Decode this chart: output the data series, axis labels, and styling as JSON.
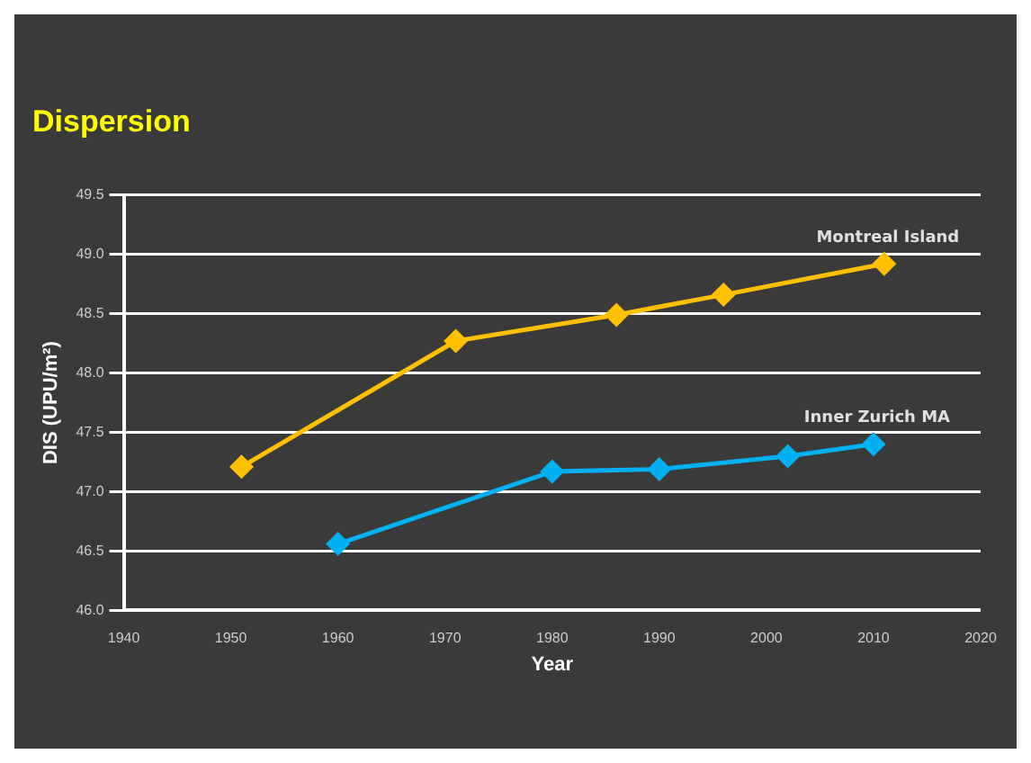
{
  "chart_data": {
    "type": "line",
    "title": "Dispersion",
    "xlabel": "Year",
    "ylabel": "DIS (UPU/m²)",
    "xlim": [
      1940,
      2020
    ],
    "xticks": [
      1940,
      1950,
      1960,
      1970,
      1980,
      1990,
      2000,
      2010,
      2020
    ],
    "ylim": [
      46.0,
      49.5
    ],
    "yticks": [
      {
        "value": 46.0,
        "label": "46.0"
      },
      {
        "value": 46.5,
        "label": "46.5"
      },
      {
        "value": 47.0,
        "label": "47.0"
      },
      {
        "value": 47.5,
        "label": "47.5"
      },
      {
        "value": 48.0,
        "label": "48.0"
      },
      {
        "value": 48.5,
        "label": "48.5"
      },
      {
        "value": 49.0,
        "label": "49.0"
      },
      {
        "value": 49.5,
        "label": "49.5"
      }
    ],
    "grid": "y",
    "legend": false,
    "marker": "diamond",
    "line_style": "solid",
    "series": [
      {
        "name": "Montreal Island",
        "color": "#ffc000",
        "x": [
          1951,
          1971,
          1986,
          1996,
          2011
        ],
        "values": [
          47.21,
          48.27,
          48.49,
          48.66,
          48.92
        ]
      },
      {
        "name": "Inner Zurich MA",
        "color": "#00b0f0",
        "x": [
          1960,
          1980,
          1990,
          2002,
          2010
        ],
        "values": [
          46.56,
          47.17,
          47.19,
          47.3,
          47.4
        ]
      }
    ]
  }
}
